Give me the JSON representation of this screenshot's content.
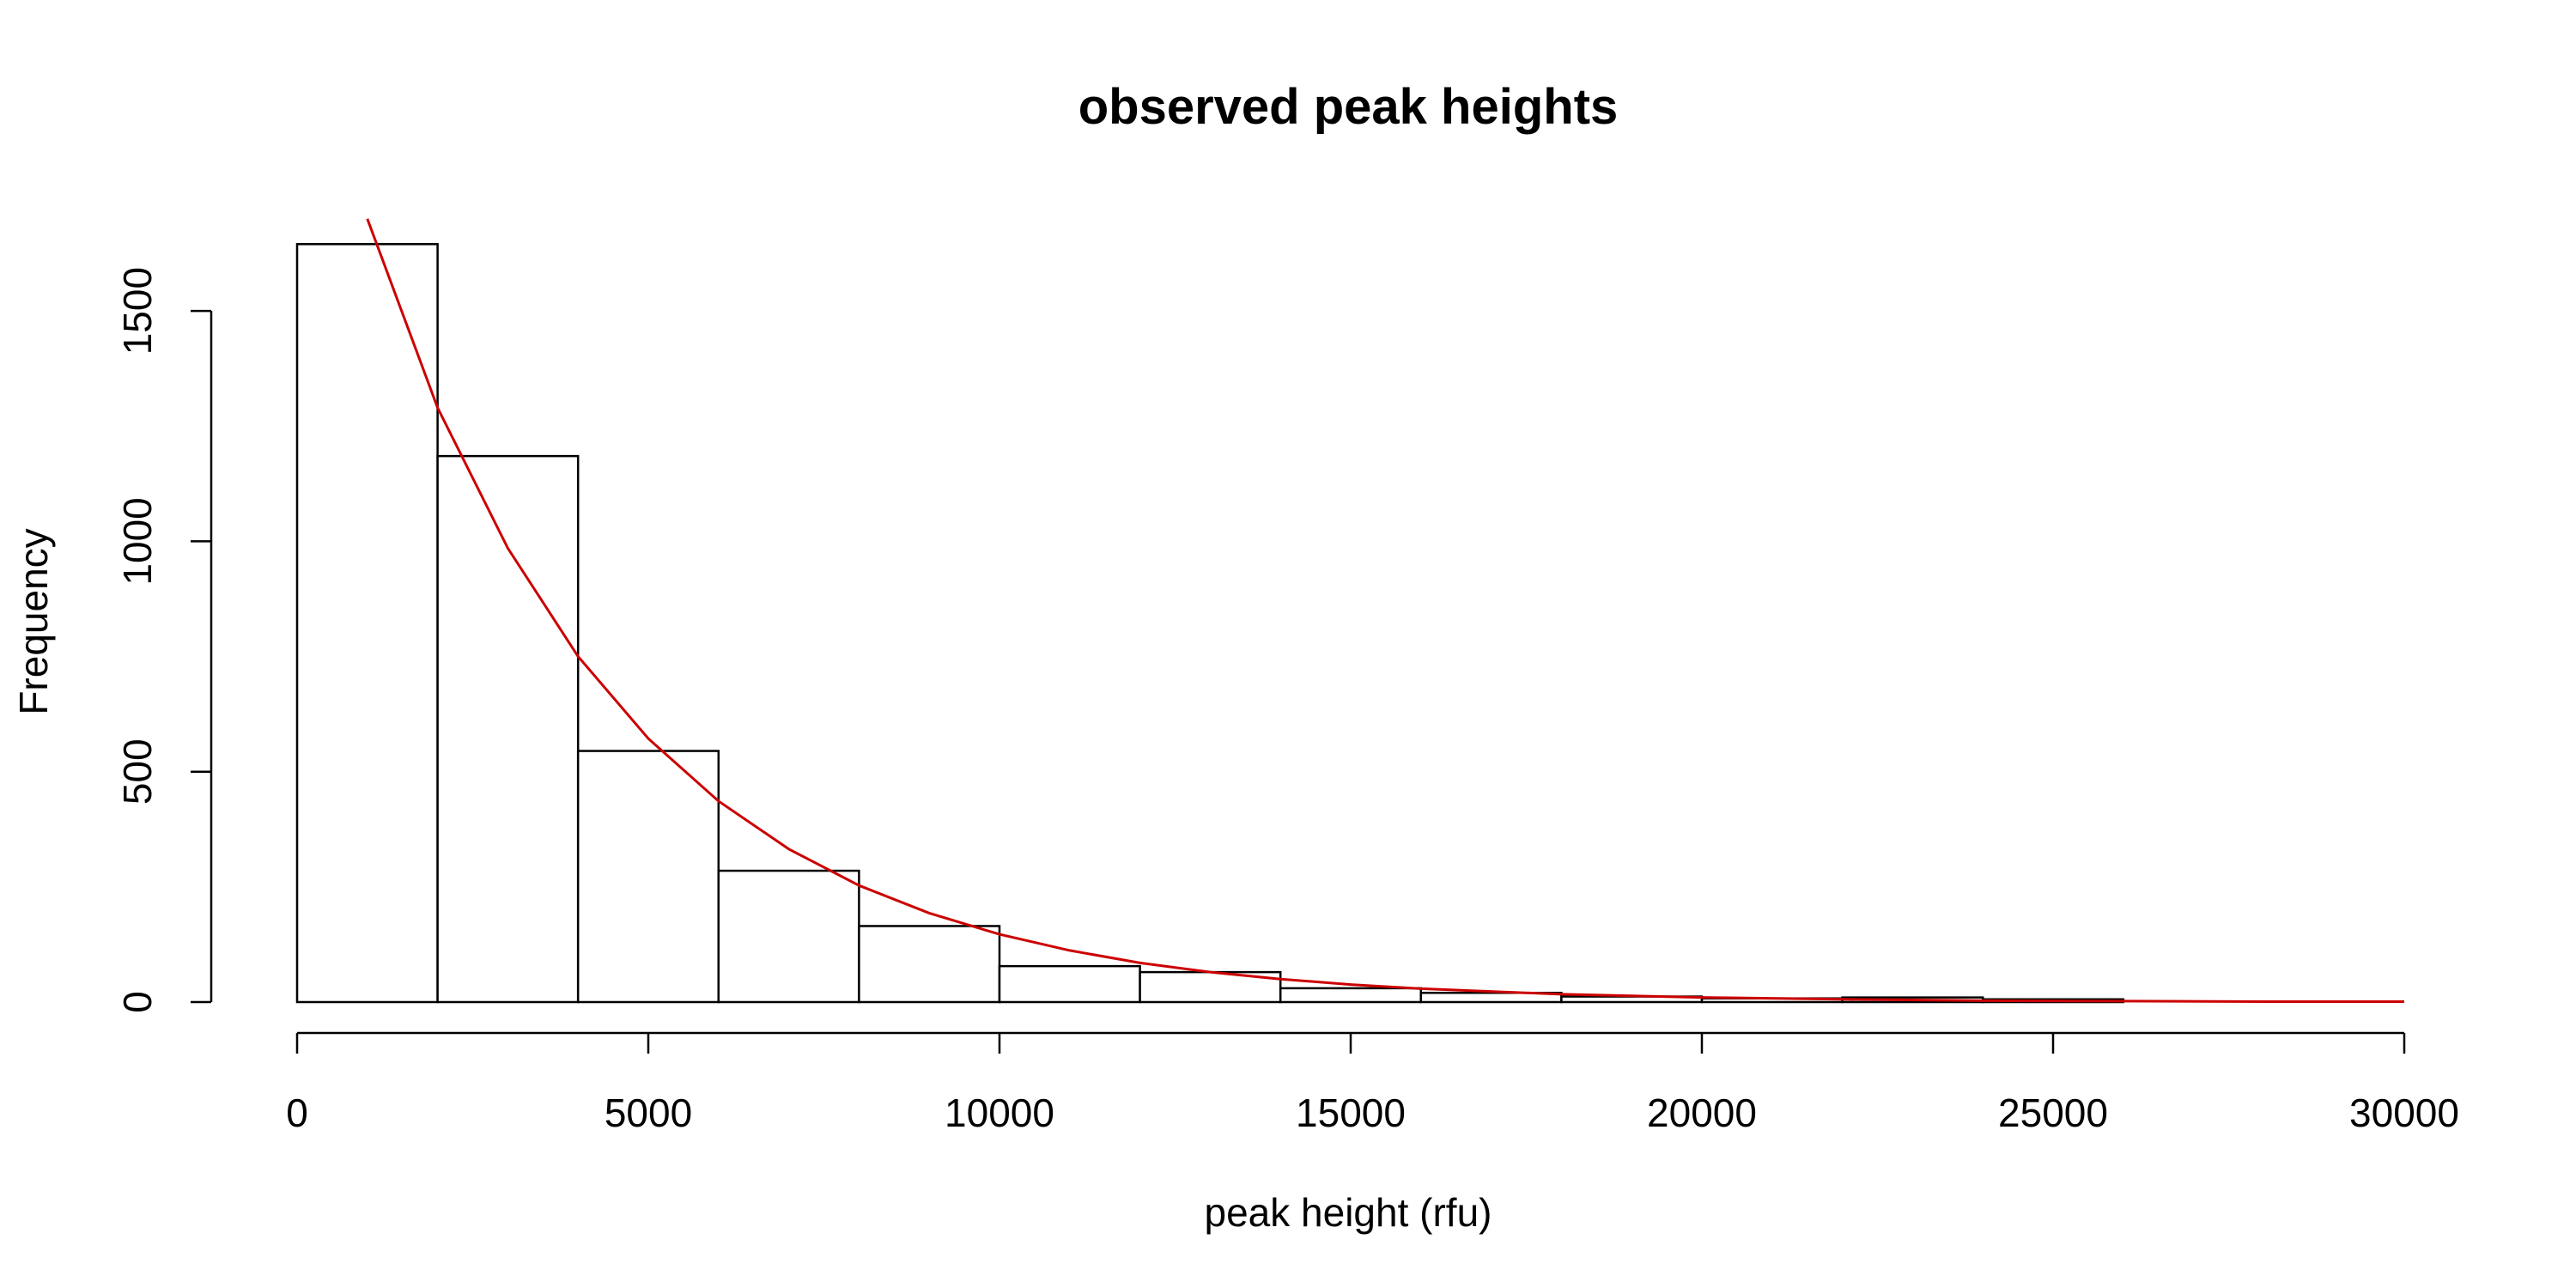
{
  "chart_data": {
    "type": "bar",
    "title": "observed peak heights",
    "xlabel": "peak height (rfu)",
    "ylabel": "Frequency",
    "xlim": [
      0,
      30000
    ],
    "ylim": [
      0,
      1700
    ],
    "x_ticks": [
      0,
      5000,
      10000,
      15000,
      20000,
      25000,
      30000
    ],
    "x_tick_labels": [
      "0",
      "5000",
      "10000",
      "15000",
      "20000",
      "25000",
      "30000"
    ],
    "y_ticks": [
      0,
      500,
      1000,
      1500
    ],
    "y_tick_labels": [
      "0",
      "500",
      "1000",
      "1500"
    ],
    "bin_width": 2000,
    "bin_starts": [
      0,
      2000,
      4000,
      6000,
      8000,
      10000,
      12000,
      14000,
      16000,
      18000,
      20000,
      22000,
      24000
    ],
    "values": [
      1645,
      1185,
      545,
      285,
      165,
      78,
      65,
      30,
      20,
      12,
      8,
      10,
      6
    ],
    "fitted_curve": {
      "color": "#cc0000",
      "x": [
        1000,
        2000,
        3000,
        4000,
        5000,
        6000,
        7000,
        8000,
        9000,
        10000,
        11000,
        12000,
        13000,
        14000,
        15000,
        16000,
        18000,
        20000,
        22000,
        24000,
        26000,
        28000,
        30000
      ],
      "y": [
        1700,
        1290,
        985,
        750,
        572,
        436,
        332,
        253,
        193,
        147,
        112,
        85,
        65,
        50,
        38,
        29,
        17,
        10,
        6,
        3,
        2,
        1,
        1
      ]
    },
    "grid": false,
    "legend": "none"
  }
}
